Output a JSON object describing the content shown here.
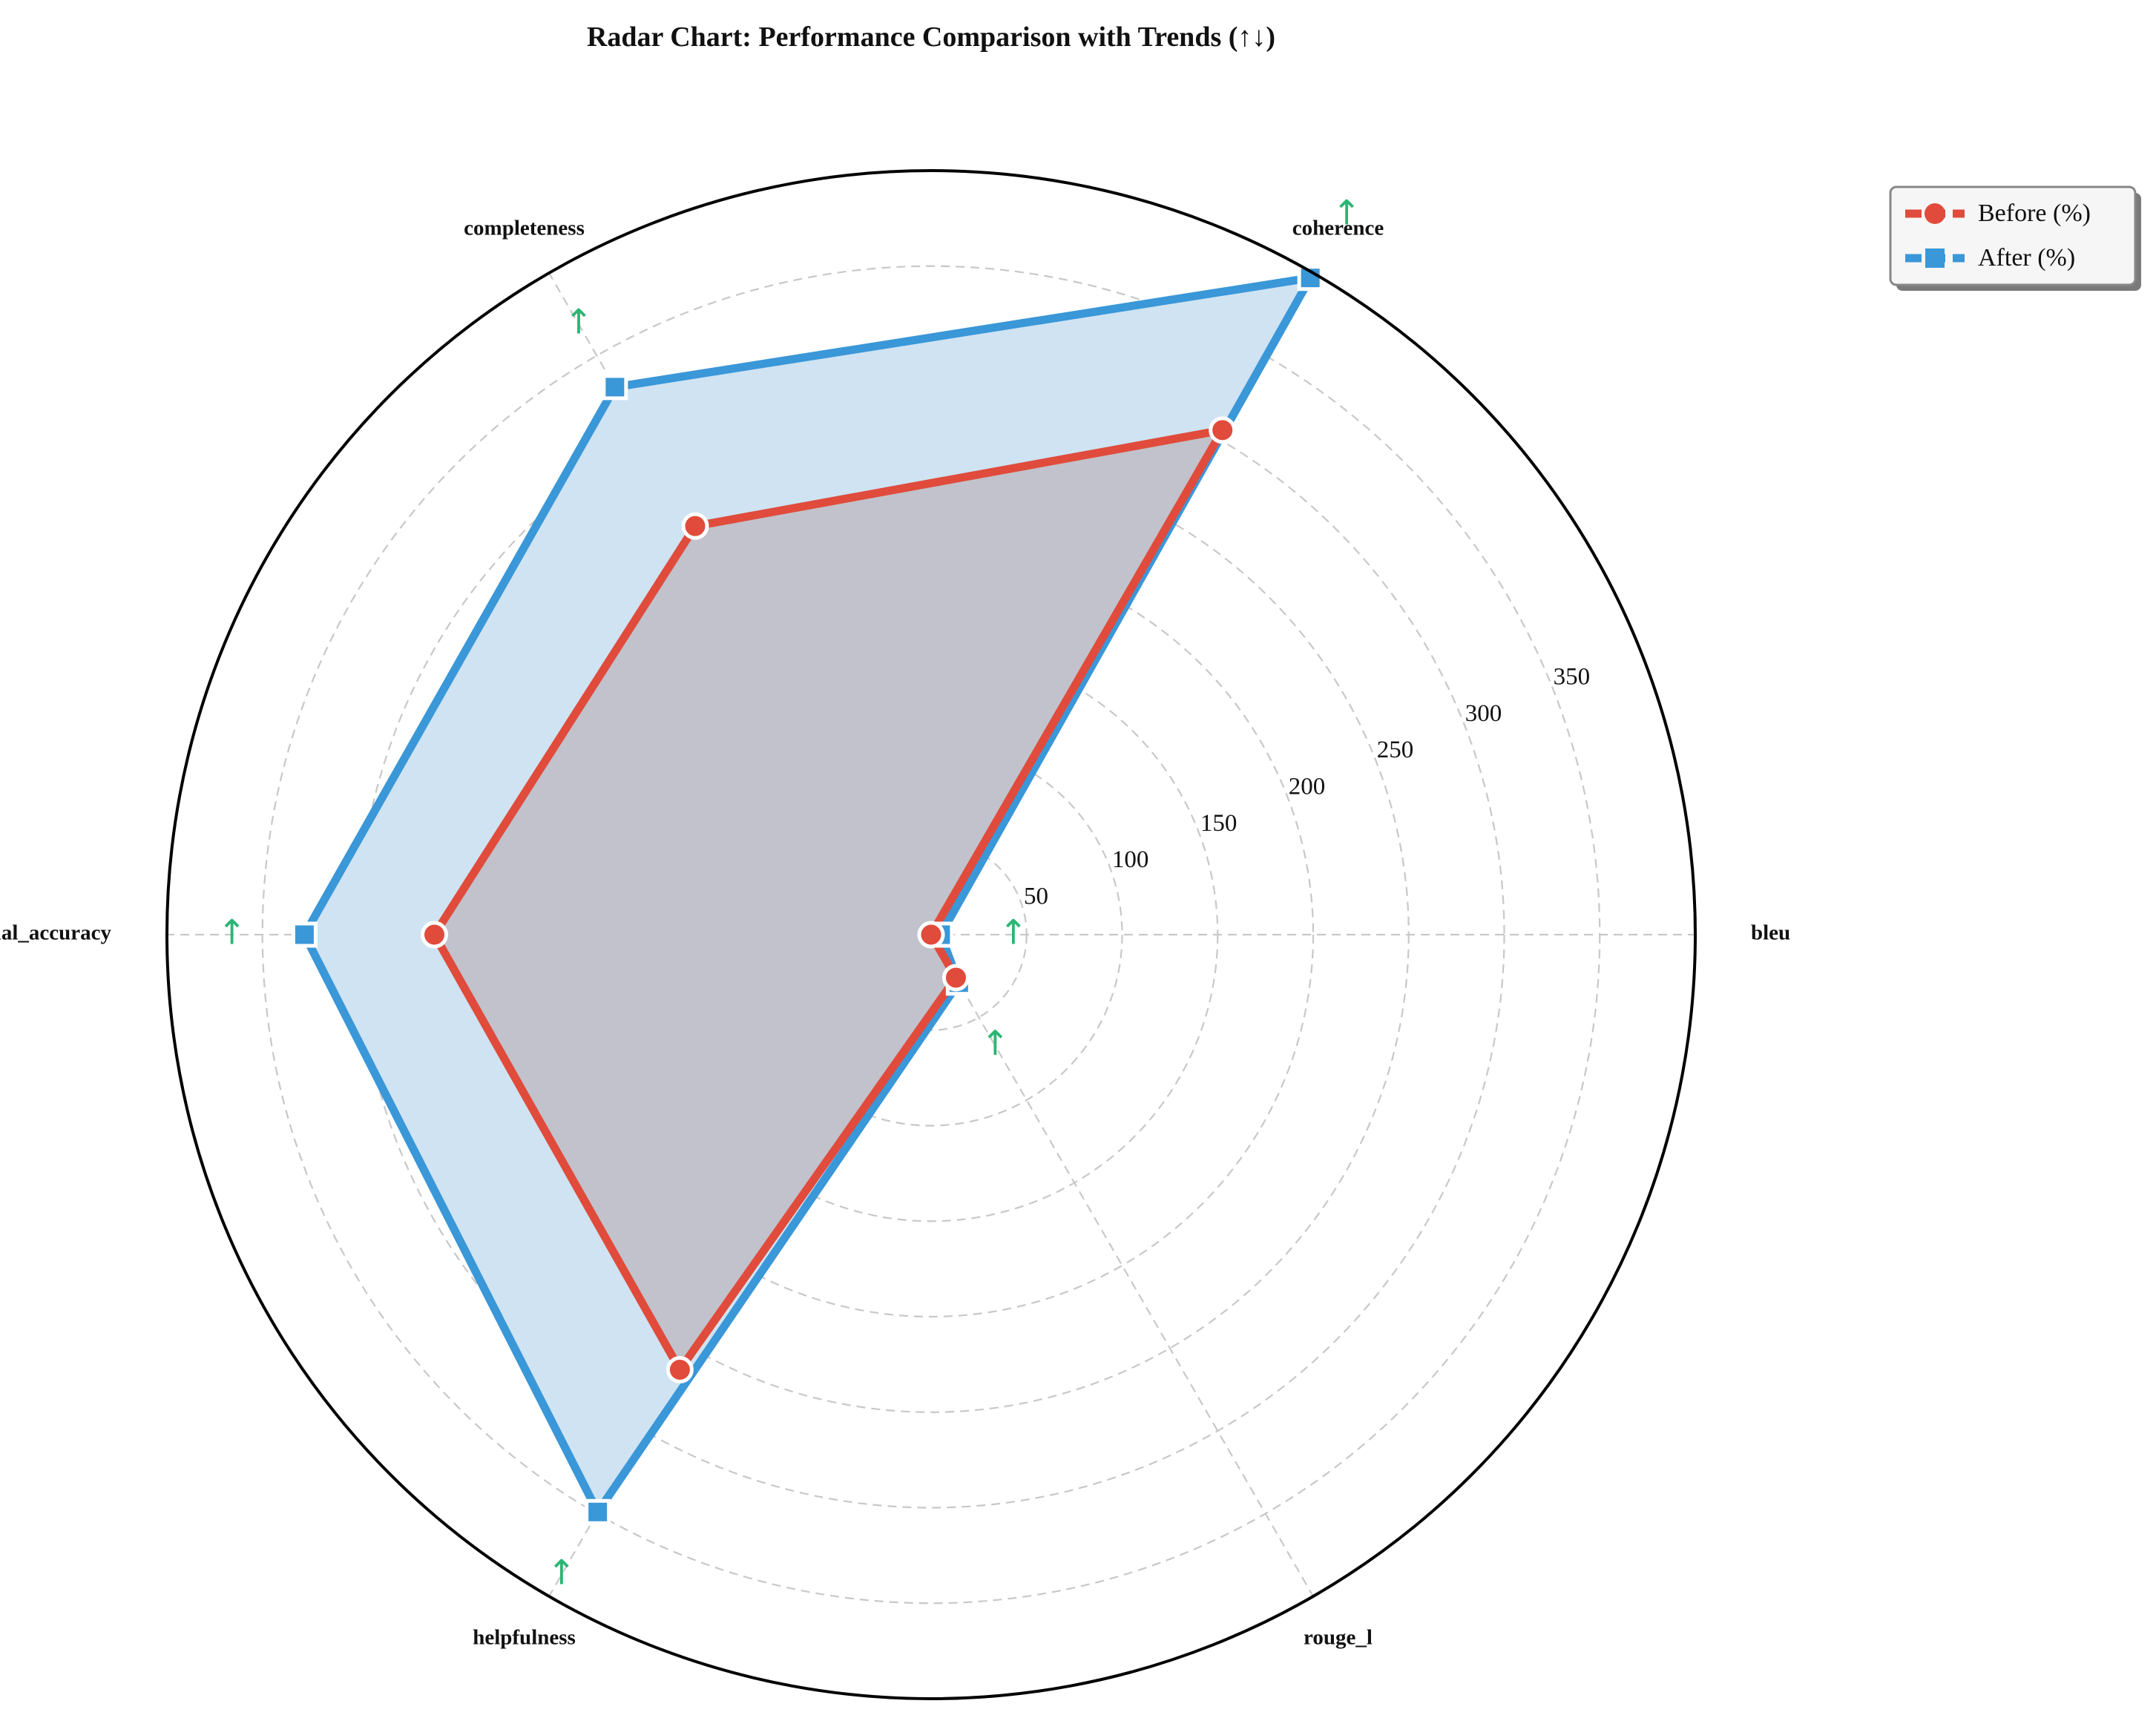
{
  "chart_data": {
    "type": "radar",
    "title": "Radar Chart: Performance Comparison with Trends (↑↓)",
    "categories": [
      "bleu",
      "coherence",
      "completeness",
      "factual_accuracy",
      "helpfulness",
      "rouge_l"
    ],
    "radial_ticks": [
      50,
      100,
      150,
      200,
      250,
      300,
      350
    ],
    "rmax": 400,
    "grid": true,
    "legend_position": "top-right, outside plot",
    "series": [
      {
        "name": "Before (%)",
        "values": [
          0,
          305,
          247,
          260,
          263,
          26
        ],
        "color": "#e04b3c",
        "fill": "#c0c0c8",
        "marker": "circle"
      },
      {
        "name": "After (%)",
        "values": [
          5,
          397,
          331,
          328,
          349,
          29
        ],
        "color": "#3a97d8",
        "fill": "#cfe3f2",
        "marker": "square"
      }
    ],
    "trends": [
      "↑",
      "↑",
      "↑",
      "↑",
      "↑",
      "↑"
    ],
    "trend_color": "#2bb673"
  }
}
